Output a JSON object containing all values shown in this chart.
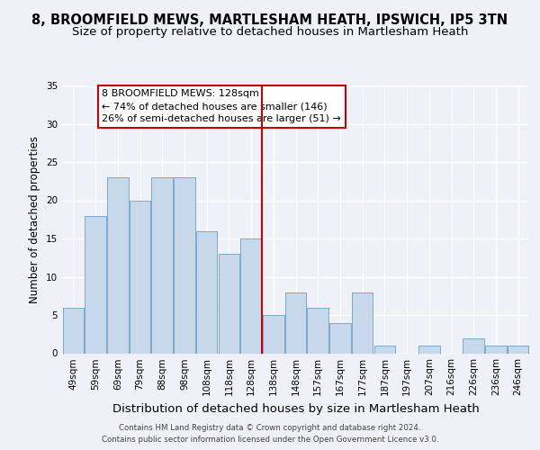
{
  "title": "8, BROOMFIELD MEWS, MARTLESHAM HEATH, IPSWICH, IP5 3TN",
  "subtitle": "Size of property relative to detached houses in Martlesham Heath",
  "xlabel": "Distribution of detached houses by size in Martlesham Heath",
  "ylabel": "Number of detached properties",
  "bar_labels": [
    "49sqm",
    "59sqm",
    "69sqm",
    "79sqm",
    "88sqm",
    "98sqm",
    "108sqm",
    "118sqm",
    "128sqm",
    "138sqm",
    "148sqm",
    "157sqm",
    "167sqm",
    "177sqm",
    "187sqm",
    "197sqm",
    "207sqm",
    "216sqm",
    "226sqm",
    "236sqm",
    "246sqm"
  ],
  "bar_values": [
    6,
    18,
    23,
    20,
    23,
    23,
    16,
    13,
    15,
    5,
    8,
    6,
    4,
    8,
    1,
    0,
    1,
    0,
    2,
    1,
    1
  ],
  "bar_color": "#c8d8eb",
  "bar_edge_color": "#7aaacb",
  "ylim": [
    0,
    35
  ],
  "yticks": [
    0,
    5,
    10,
    15,
    20,
    25,
    30,
    35
  ],
  "reference_line_x": 8.5,
  "reference_line_color": "#cc0000",
  "annotation_title": "8 BROOMFIELD MEWS: 128sqm",
  "annotation_line1": "← 74% of detached houses are smaller (146)",
  "annotation_line2": "26% of semi-detached houses are larger (51) →",
  "annotation_box_color": "#ffffff",
  "annotation_box_edge": "#cc0000",
  "footer1": "Contains HM Land Registry data © Crown copyright and database right 2024.",
  "footer2": "Contains public sector information licensed under the Open Government Licence v3.0.",
  "bg_color": "#eef2f8",
  "grid_color": "#ffffff",
  "title_fontsize": 10.5,
  "subtitle_fontsize": 9.5,
  "tick_fontsize": 7.5,
  "ylabel_fontsize": 8.5,
  "xlabel_fontsize": 9.5,
  "footer_fontsize": 6.2
}
